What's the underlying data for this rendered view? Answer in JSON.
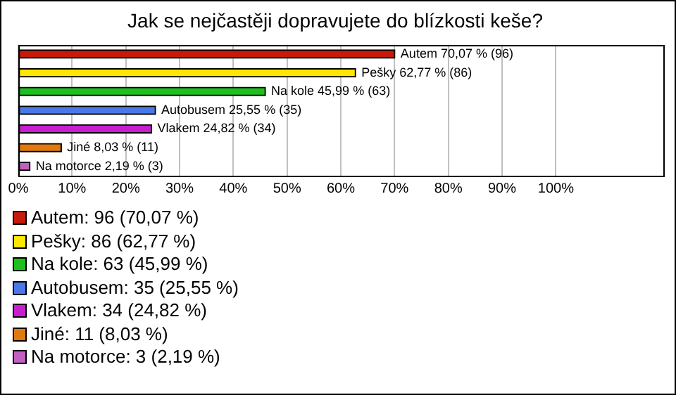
{
  "chart_data": {
    "type": "bar",
    "orientation": "horizontal",
    "stacked": true,
    "title": "Jak se nejčastěji dopravujete do blízkosti keše?",
    "categories": [
      null,
      null,
      null,
      null,
      null,
      null,
      null
    ],
    "series": [
      {
        "name": "Autem: 96 (70,07 %)",
        "color": "#c81a0a",
        "values": [
          70.07,
          null,
          null,
          null,
          null,
          null,
          null
        ],
        "value_labels": [
          "Autem 70,07 % (96)",
          null,
          null,
          null,
          null,
          null,
          null
        ]
      },
      {
        "name": "Pešky: 86 (62,77 %)",
        "color": "#ffe800",
        "values": [
          null,
          62.77,
          null,
          null,
          null,
          null,
          null
        ],
        "value_labels": [
          null,
          "Pešky 62,77 % (86)",
          null,
          null,
          null,
          null,
          null
        ]
      },
      {
        "name": "Na kole: 63 (45,99 %)",
        "color": "#1fbf1f",
        "values": [
          null,
          null,
          45.99,
          null,
          null,
          null,
          null
        ],
        "value_labels": [
          null,
          null,
          "Na kole 45,99 % (63)",
          null,
          null,
          null,
          null
        ]
      },
      {
        "name": "Autobusem: 35 (25,55 %)",
        "color": "#4a78e8",
        "values": [
          null,
          null,
          null,
          25.55,
          null,
          null,
          null
        ],
        "value_labels": [
          null,
          null,
          null,
          "Autobusem 25,55 % (35)",
          null,
          null,
          null
        ]
      },
      {
        "name": "Vlakem: 34 (24,82 %)",
        "color": "#c81ecf",
        "values": [
          null,
          null,
          null,
          null,
          24.82,
          null,
          null
        ],
        "value_labels": [
          null,
          null,
          null,
          null,
          "Vlakem 24,82 % (34)",
          null,
          null
        ]
      },
      {
        "name": "Jiné: 11 (8,03 %)",
        "color": "#e07a10",
        "values": [
          null,
          null,
          null,
          null,
          null,
          8.03,
          null
        ],
        "value_labels": [
          null,
          null,
          null,
          null,
          null,
          "Jiné 8,03 % (11)",
          null
        ]
      },
      {
        "name": "Na motorce: 3 (2,19 %)",
        "color": "#c060c0",
        "values": [
          null,
          null,
          null,
          null,
          null,
          null,
          2.19
        ],
        "value_labels": [
          null,
          null,
          null,
          null,
          null,
          null,
          "Na motorce 2,19 % (3)"
        ]
      }
    ],
    "xlim": [
      0,
      120
    ],
    "xticks": [
      {
        "value": 0,
        "label": "0%"
      },
      {
        "value": 10,
        "label": "10%"
      },
      {
        "value": 20,
        "label": "20%"
      },
      {
        "value": 30,
        "label": "30%"
      },
      {
        "value": 40,
        "label": "40%"
      },
      {
        "value": 50,
        "label": "50%"
      },
      {
        "value": 60,
        "label": "60%"
      },
      {
        "value": 70,
        "label": "70%"
      },
      {
        "value": 80,
        "label": "80%"
      },
      {
        "value": 90,
        "label": "90%"
      },
      {
        "value": 100,
        "label": "100%"
      }
    ],
    "grid": "x",
    "tick_labels": "x",
    "legend": "bottom"
  }
}
